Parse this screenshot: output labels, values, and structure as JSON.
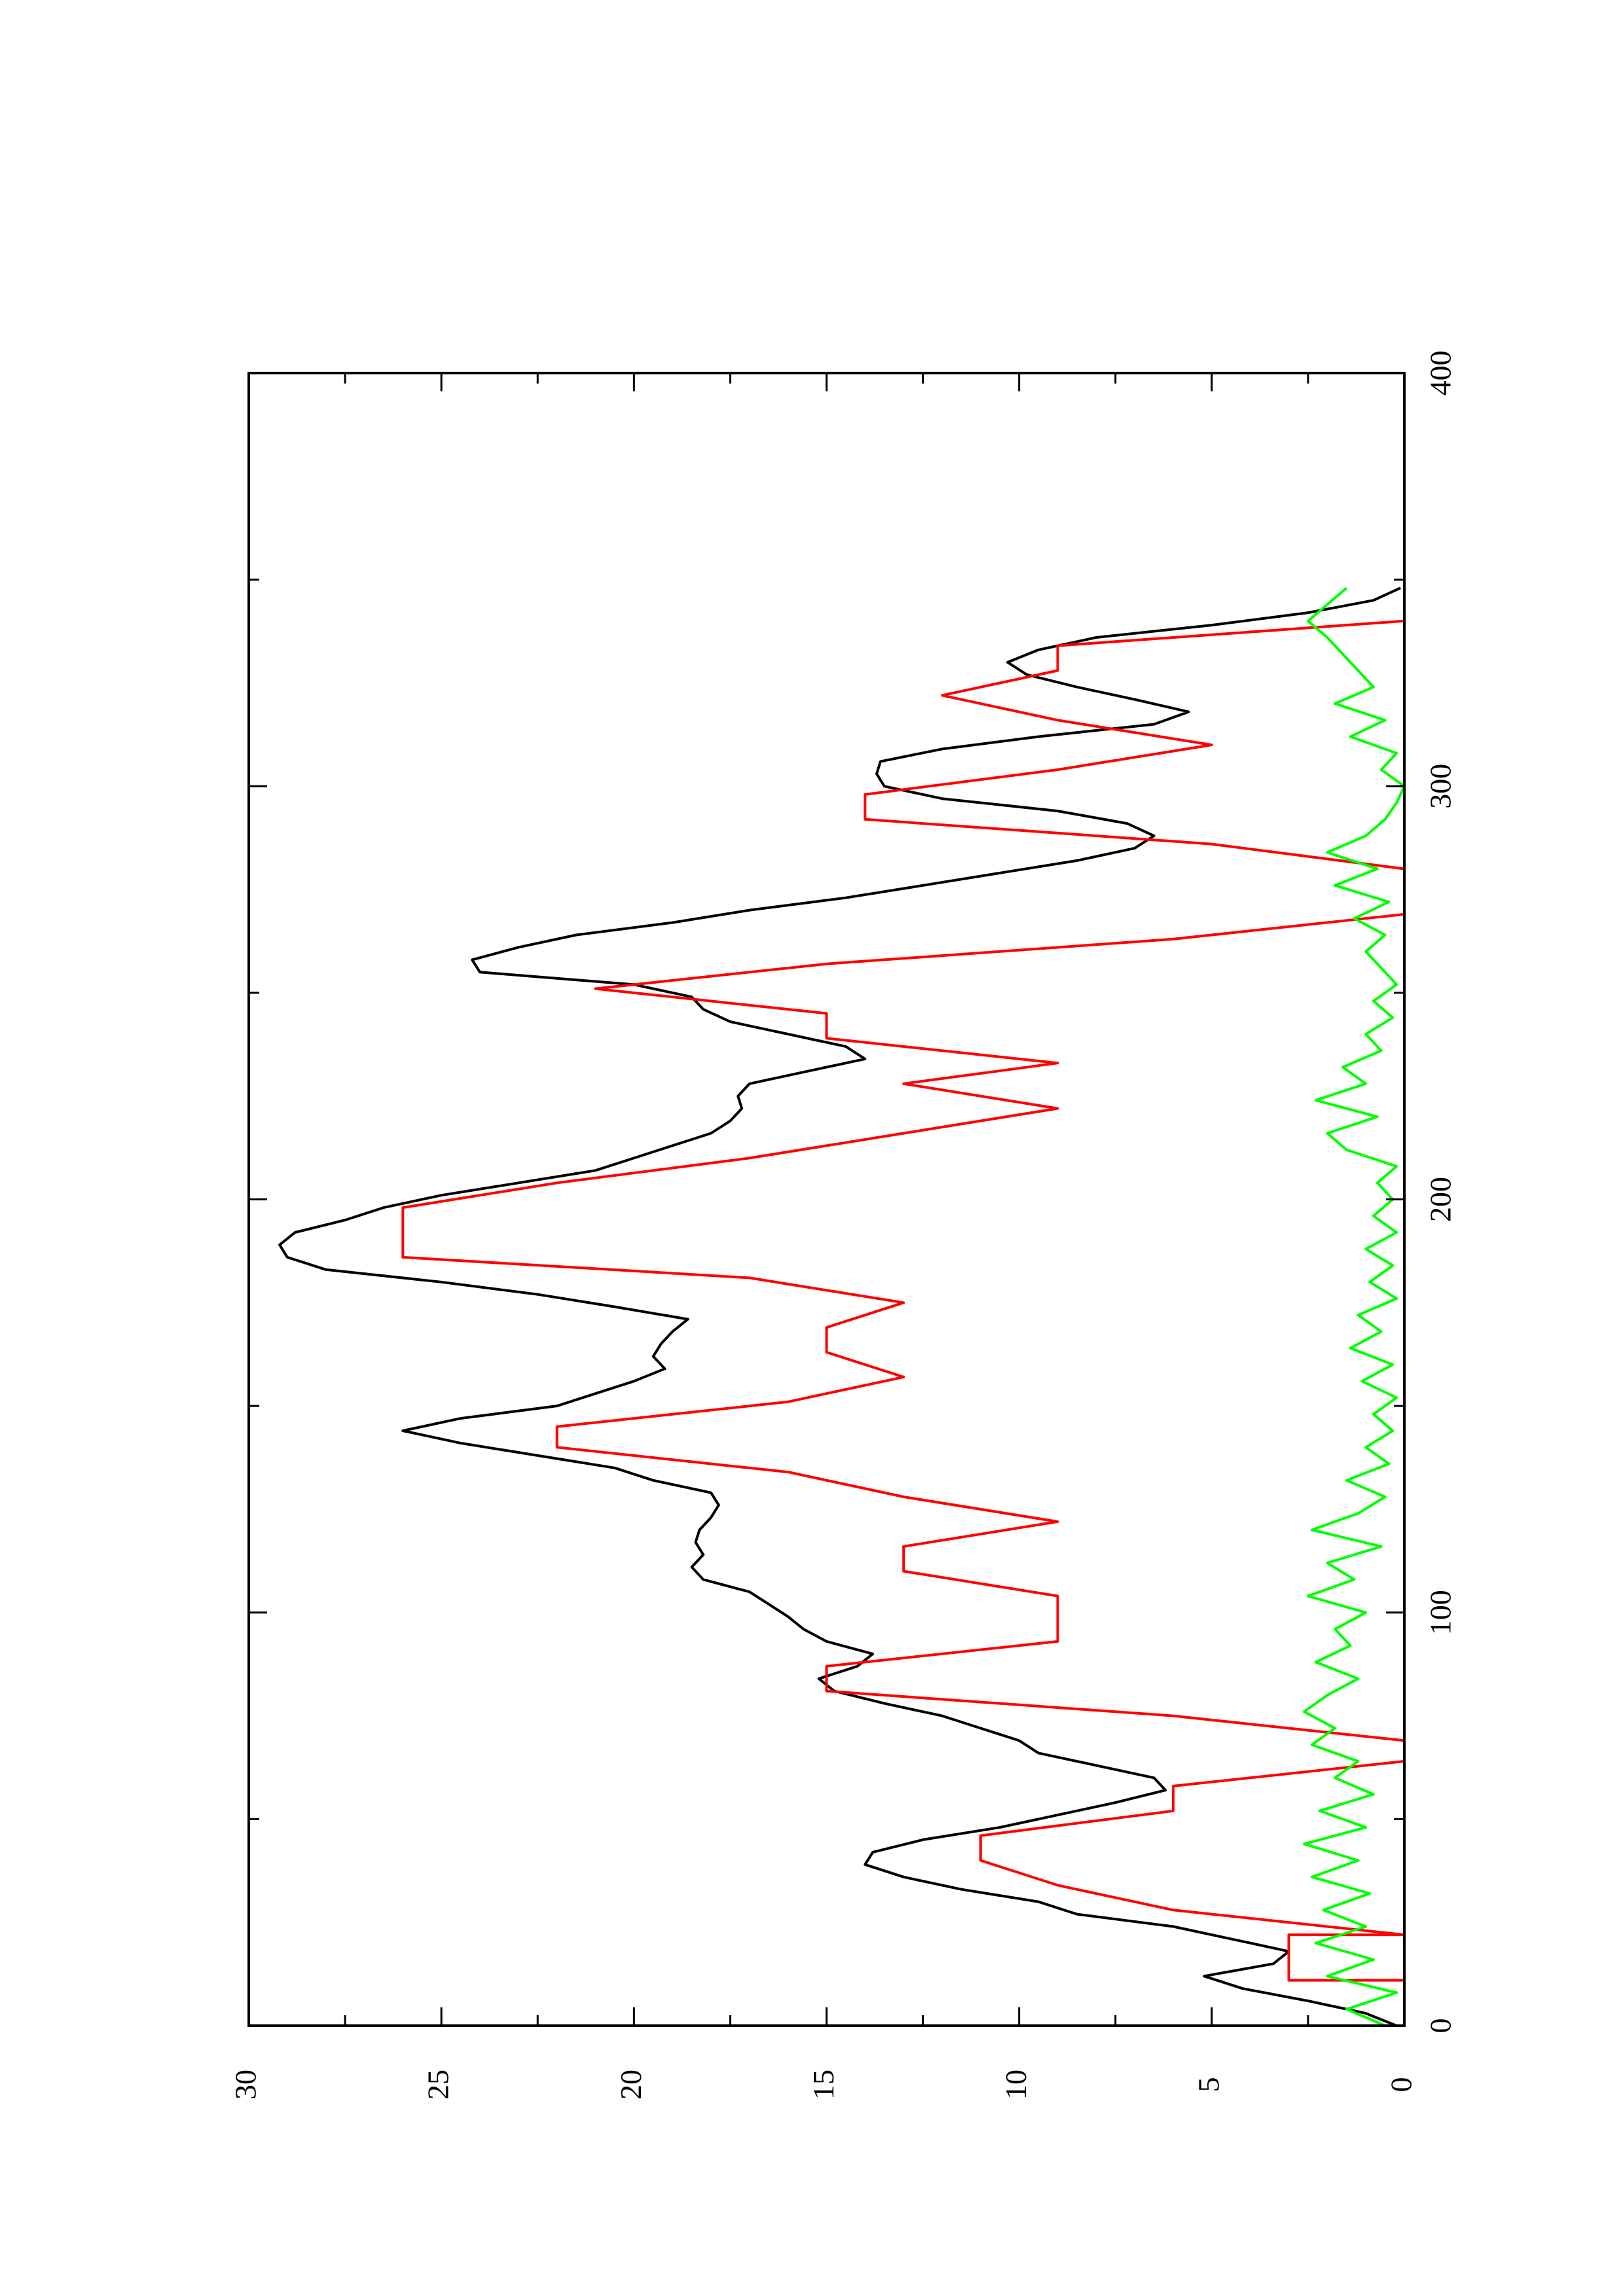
{
  "chart_data": {
    "type": "line",
    "title": "",
    "xlabel": "",
    "ylabel": "",
    "orientation": "rotated 90° counter-clockwise",
    "xlim": [
      0,
      400
    ],
    "ylim": [
      0,
      30
    ],
    "x_ticks": [
      "0",
      "100",
      "200",
      "300",
      "400"
    ],
    "y_ticks": [
      "0",
      "5",
      "10",
      "15",
      "20",
      "25",
      "30"
    ],
    "grid": false,
    "legend": "none",
    "colors": {
      "black": "#000000",
      "red": "#ff0000",
      "green": "#00ff00"
    },
    "series": [
      {
        "color": "#000000",
        "x": [
          0,
          3,
          6,
          9,
          12,
          15,
          18,
          21,
          24,
          27,
          30,
          33,
          36,
          39,
          42,
          45,
          48,
          51,
          54,
          57,
          60,
          63,
          66,
          69,
          72,
          75,
          78,
          81,
          84,
          87,
          90,
          93,
          96,
          99,
          102,
          105,
          108,
          111,
          114,
          117,
          120,
          123,
          126,
          129,
          132,
          135,
          138,
          141,
          144,
          147,
          150,
          153,
          156,
          159,
          162,
          165,
          168,
          171,
          174,
          177,
          180,
          183,
          186,
          189,
          192,
          195,
          198,
          201,
          204,
          207,
          210,
          213,
          216,
          219,
          222,
          225,
          228,
          231,
          234,
          237,
          240,
          243,
          246,
          249,
          252,
          255,
          258,
          261,
          264,
          267,
          270,
          273,
          276,
          279,
          282,
          285,
          288,
          291,
          294,
          297,
          300,
          303,
          306,
          309,
          312,
          315,
          318,
          321,
          324,
          327,
          330,
          333,
          336,
          339,
          342,
          345,
          348
        ],
        "y": [
          0.2,
          1.0,
          2.5,
          4.2,
          5.2,
          3.4,
          3.0,
          4.5,
          6.0,
          8.5,
          9.5,
          11.5,
          13.0,
          14.0,
          13.8,
          12.5,
          10.5,
          9.0,
          7.5,
          6.2,
          6.5,
          8.0,
          9.5,
          10.0,
          11.0,
          12.0,
          13.5,
          14.8,
          15.2,
          14.2,
          13.8,
          15.0,
          15.6,
          16.0,
          16.5,
          17.0,
          18.2,
          18.5,
          18.2,
          18.4,
          18.3,
          18.0,
          17.8,
          18.0,
          19.5,
          20.5,
          22.5,
          24.5,
          26.0,
          24.5,
          22.0,
          21.0,
          20.0,
          19.2,
          19.5,
          19.3,
          19.0,
          18.6,
          20.5,
          22.5,
          25.0,
          28.0,
          29.0,
          29.2,
          28.8,
          27.5,
          26.5,
          25.0,
          23.0,
          21.0,
          20.0,
          19.0,
          18.0,
          17.5,
          17.2,
          17.3,
          17.0,
          15.5,
          14.0,
          14.5,
          16.0,
          17.5,
          18.2,
          18.5,
          20.0,
          24.0,
          24.2,
          23.0,
          21.5,
          19.0,
          17.0,
          14.5,
          12.5,
          10.5,
          8.5,
          7.0,
          6.5,
          7.2,
          9.0,
          12.0,
          13.5,
          13.7,
          13.6,
          12.0,
          9.5,
          6.5,
          5.6,
          7.0,
          8.5,
          9.8,
          10.3,
          9.5,
          8.0,
          5.0,
          2.5,
          0.8,
          0.1
        ]
      },
      {
        "color": "#ff0000",
        "x": [
          0,
          6,
          11,
          11,
          17,
          22,
          22,
          28,
          28,
          34,
          34,
          40,
          40,
          46,
          46,
          52,
          52,
          58,
          64,
          69,
          69,
          75,
          75,
          81,
          81,
          87,
          87,
          93,
          99,
          104,
          104,
          110,
          110,
          116,
          116,
          122,
          122,
          128,
          128,
          134,
          134,
          140,
          145,
          151,
          151,
          157,
          157,
          163,
          163,
          169,
          169,
          175,
          175,
          181,
          181,
          186,
          192,
          198,
          198,
          204,
          204,
          210,
          210,
          216,
          216,
          222,
          222,
          228,
          228,
          233,
          233,
          239,
          239,
          245,
          245,
          251,
          251,
          257,
          257,
          263,
          263,
          269,
          269,
          274,
          280,
          286,
          286,
          292,
          292,
          298,
          298,
          304,
          304,
          310,
          310,
          316,
          316,
          322,
          322,
          328,
          328,
          334,
          334,
          340,
          340
        ],
        "y": [
          0,
          0,
          0,
          3,
          3,
          3,
          0,
          6,
          6,
          9,
          9,
          11,
          11,
          11,
          11,
          6,
          6,
          6,
          0,
          0,
          0,
          6,
          6,
          15,
          15,
          15,
          15,
          9,
          9,
          9,
          9,
          13,
          13,
          13,
          13,
          9,
          9,
          13,
          13,
          16,
          16,
          22,
          22,
          16,
          16,
          13,
          13,
          15,
          15,
          15,
          15,
          13,
          13,
          17,
          17,
          26,
          26,
          26,
          26,
          22,
          22,
          17,
          17,
          13,
          13,
          9,
          9,
          13,
          13,
          9,
          9,
          15,
          15,
          15,
          15,
          21,
          21,
          15,
          15,
          6,
          6,
          0,
          0,
          0,
          0,
          5,
          5,
          14,
          14,
          14,
          14,
          9,
          9,
          5,
          5,
          9,
          9,
          12,
          12,
          9,
          9,
          9,
          9,
          0,
          0
        ]
      },
      {
        "color": "#00ff00",
        "x": [
          0,
          4,
          8,
          12,
          16,
          20,
          24,
          28,
          32,
          36,
          40,
          44,
          48,
          52,
          56,
          60,
          64,
          68,
          72,
          76,
          80,
          84,
          88,
          92,
          96,
          100,
          104,
          108,
          112,
          116,
          120,
          124,
          128,
          132,
          136,
          140,
          144,
          148,
          152,
          156,
          160,
          164,
          168,
          172,
          176,
          180,
          184,
          188,
          192,
          196,
          200,
          204,
          208,
          212,
          216,
          220,
          224,
          228,
          232,
          236,
          240,
          244,
          248,
          252,
          256,
          260,
          264,
          268,
          272,
          276,
          280,
          284,
          288,
          292,
          296,
          300,
          304,
          308,
          312,
          316,
          320,
          324,
          328,
          332,
          336,
          340,
          344,
          348
        ],
        "y": [
          0.5,
          1.5,
          0.2,
          2.0,
          0.8,
          2.3,
          1.0,
          2.1,
          0.9,
          2.4,
          1.2,
          2.6,
          1.0,
          2.2,
          0.8,
          1.8,
          1.2,
          2.4,
          1.8,
          2.6,
          2.0,
          1.2,
          2.3,
          1.4,
          1.8,
          1.0,
          2.5,
          1.3,
          2.0,
          0.6,
          2.4,
          1.2,
          0.5,
          1.5,
          0.4,
          1.0,
          0.3,
          0.8,
          0.2,
          1.1,
          0.3,
          1.4,
          0.6,
          1.2,
          0.2,
          0.9,
          0.3,
          1.0,
          0.2,
          0.8,
          0.3,
          0.7,
          0.2,
          1.5,
          2.0,
          0.7,
          2.3,
          1.0,
          1.6,
          0.6,
          1.0,
          0.3,
          0.8,
          0.2,
          0.6,
          1.0,
          0.5,
          1.3,
          0.4,
          1.8,
          0.7,
          2.0,
          1.0,
          0.5,
          0.2,
          0.0,
          0.6,
          0.2,
          1.4,
          0.5,
          1.8,
          0.8,
          1.2,
          1.6,
          2.0,
          2.5,
          2.0,
          1.5
        ]
      }
    ]
  }
}
